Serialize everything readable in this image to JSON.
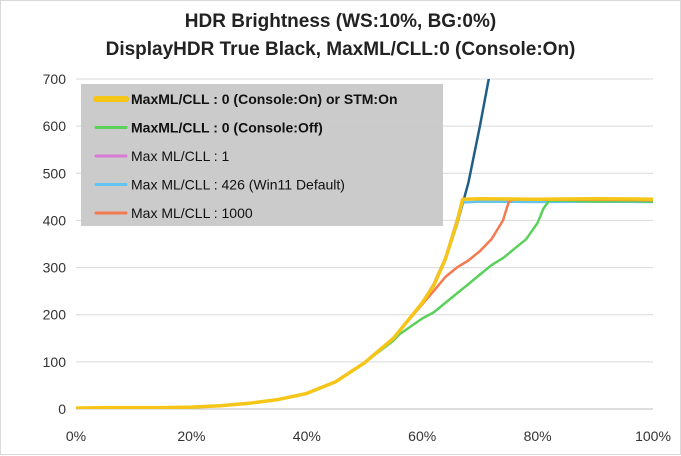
{
  "chart_data": {
    "type": "line",
    "title_lines": [
      "HDR Brightness (WS:10%, BG:0%)",
      "DisplayHDR True Black, MaxML/CLL:0 (Console:On)"
    ],
    "xlabel": "",
    "ylabel": "",
    "xlim": [
      0,
      100
    ],
    "ylim": [
      0,
      700
    ],
    "x_ticks": [
      "0%",
      "20%",
      "40%",
      "60%",
      "80%",
      "100%"
    ],
    "x_tick_values": [
      0,
      20,
      40,
      60,
      80,
      100
    ],
    "y_ticks": [
      "0",
      "100",
      "200",
      "300",
      "400",
      "500",
      "600",
      "700"
    ],
    "y_tick_values": [
      0,
      100,
      200,
      300,
      400,
      500,
      600,
      700
    ],
    "grid": "horizontal",
    "legend_placement": "top-left",
    "series": [
      {
        "name": "",
        "color": "#1f5f86",
        "legend": false,
        "x": [
          0,
          5,
          10,
          15,
          20,
          25,
          30,
          35,
          40,
          45,
          50,
          55,
          60,
          62,
          64,
          66,
          68,
          70,
          72
        ],
        "y": [
          2,
          3,
          3,
          3,
          4,
          7,
          12,
          20,
          33,
          58,
          98,
          150,
          225,
          265,
          320,
          390,
          480,
          600,
          730
        ]
      },
      {
        "name": "Max ML/CLL : 1",
        "color": "#d97ad6",
        "legend": true,
        "bold": false,
        "x": [
          0,
          5,
          10,
          15,
          20,
          25,
          30,
          35,
          40,
          45,
          50,
          55,
          60,
          62,
          64,
          66,
          67,
          70,
          80,
          90,
          100
        ],
        "y": [
          2,
          3,
          3,
          3,
          4,
          7,
          12,
          20,
          33,
          58,
          98,
          150,
          225,
          265,
          320,
          400,
          445,
          445,
          444,
          444,
          443
        ]
      },
      {
        "name": "Max ML/CLL : 426 (Win11 Default)",
        "color": "#63c5ef",
        "legend": true,
        "bold": false,
        "x": [
          0,
          5,
          10,
          15,
          20,
          25,
          30,
          35,
          40,
          45,
          50,
          55,
          60,
          62,
          64,
          66,
          67,
          70,
          80,
          90,
          100
        ],
        "y": [
          2,
          3,
          3,
          3,
          4,
          7,
          12,
          20,
          33,
          58,
          98,
          150,
          225,
          262,
          315,
          390,
          438,
          440,
          439,
          440,
          439
        ]
      },
      {
        "name": "MaxML/CLL : 0 (Console:Off)",
        "color": "#5ad15a",
        "legend": true,
        "bold": true,
        "x": [
          0,
          5,
          10,
          15,
          20,
          25,
          30,
          35,
          40,
          45,
          50,
          55,
          56,
          58,
          60,
          62,
          64,
          66,
          68,
          70,
          72,
          74,
          76,
          78,
          80,
          81,
          82,
          85,
          90,
          95,
          100
        ],
        "y": [
          2,
          3,
          3,
          3,
          4,
          7,
          12,
          20,
          33,
          58,
          98,
          145,
          158,
          175,
          192,
          205,
          225,
          245,
          265,
          285,
          305,
          320,
          340,
          360,
          395,
          425,
          442,
          442,
          440,
          441,
          440
        ]
      },
      {
        "name": "Max ML/CLL : 1000",
        "color": "#f47a4f",
        "legend": true,
        "bold": false,
        "x": [
          0,
          5,
          10,
          15,
          20,
          25,
          30,
          35,
          40,
          45,
          50,
          55,
          60,
          62,
          64,
          66,
          68,
          70,
          72,
          74,
          75,
          76,
          80,
          90,
          100
        ],
        "y": [
          2,
          3,
          3,
          3,
          4,
          7,
          12,
          20,
          33,
          58,
          98,
          150,
          222,
          250,
          280,
          300,
          315,
          335,
          360,
          400,
          440,
          445,
          444,
          444,
          443
        ]
      },
      {
        "name": "MaxML/CLL : 0 (Console:On) or STM:On",
        "color": "#f5c518",
        "legend": true,
        "bold": true,
        "x": [
          0,
          5,
          10,
          15,
          20,
          25,
          30,
          35,
          40,
          45,
          50,
          55,
          60,
          62,
          64,
          66,
          67,
          70,
          80,
          90,
          100
        ],
        "y": [
          2,
          3,
          3,
          3,
          4,
          7,
          12,
          20,
          33,
          58,
          98,
          150,
          225,
          262,
          318,
          395,
          445,
          446,
          445,
          446,
          445
        ]
      }
    ],
    "legend_order": [
      "MaxML/CLL : 0 (Console:On) or STM:On",
      "MaxML/CLL : 0 (Console:Off)",
      "Max ML/CLL : 1",
      "Max ML/CLL : 426 (Win11 Default)",
      "Max ML/CLL : 1000"
    ]
  }
}
